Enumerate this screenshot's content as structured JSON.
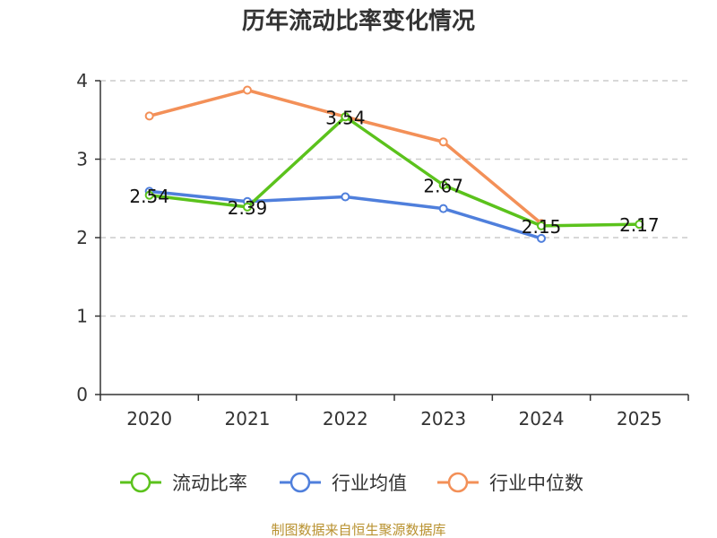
{
  "chart_data": {
    "type": "line",
    "title": "历年流动比率变化情况",
    "xlabel": "",
    "ylabel": "",
    "categories": [
      "2020",
      "2021",
      "2022",
      "2023",
      "2024",
      "2025"
    ],
    "ylim": [
      0,
      4
    ],
    "yticks": [
      "0",
      "1",
      "2",
      "3",
      "4"
    ],
    "grid": true,
    "legend_position": "bottom",
    "series": [
      {
        "name": "流动比率",
        "color": "#5bc21c",
        "values": [
          2.54,
          2.39,
          3.54,
          2.67,
          2.15,
          2.17
        ],
        "labels": [
          "2.54",
          "2.39",
          "3.54",
          "2.67",
          "2.15",
          "2.17"
        ]
      },
      {
        "name": "行业均值",
        "color": "#4f7fdc",
        "values": [
          2.59,
          2.46,
          2.52,
          2.37,
          1.99,
          null
        ]
      },
      {
        "name": "行业中位数",
        "color": "#f39058",
        "values": [
          3.55,
          3.88,
          3.54,
          3.22,
          2.18,
          null
        ]
      }
    ],
    "source": "制图数据来自恒生聚源数据库"
  }
}
